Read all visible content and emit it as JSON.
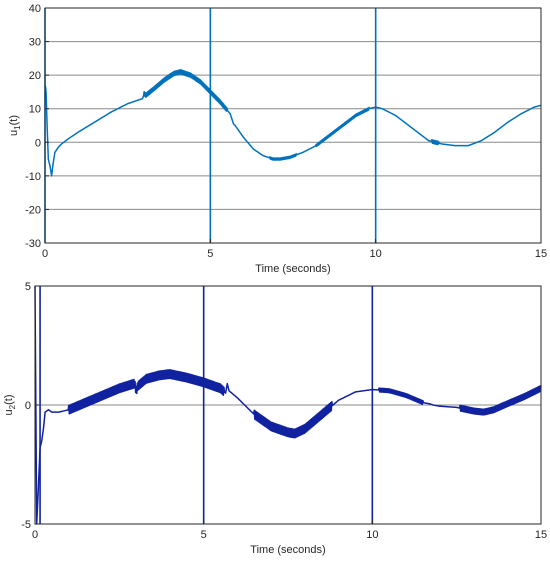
{
  "chart_data": [
    {
      "type": "line",
      "xlabel": "Time (seconds)",
      "ylabel_main": "u",
      "ylabel_sub": "1",
      "ylabel_tail": "(t)",
      "xlim": [
        0,
        15
      ],
      "ylim": [
        -30,
        40
      ],
      "xticks": [
        0,
        5,
        10,
        15
      ],
      "yticks": [
        -30,
        -20,
        -10,
        0,
        10,
        20,
        30,
        40
      ],
      "grid": "horizontal",
      "color": "#0072BD",
      "spikes": [
        0,
        5,
        10
      ],
      "noisy_spans": [
        [
          3.0,
          5.5,
          0.6
        ],
        [
          6.8,
          7.6,
          0.3
        ],
        [
          8.2,
          9.8,
          0.35
        ],
        [
          11.7,
          11.9,
          0.5
        ]
      ],
      "x": [
        0,
        0.03,
        0.06,
        0.1,
        0.15,
        0.2,
        0.25,
        0.3,
        0.4,
        0.5,
        0.7,
        1.0,
        1.5,
        2.0,
        2.5,
        2.95,
        3.0,
        3.05,
        3.3,
        3.6,
        3.9,
        4.1,
        4.4,
        4.7,
        5.0,
        5.3,
        5.6,
        5.7,
        5.75,
        6.0,
        6.3,
        6.6,
        6.9,
        7.1,
        7.4,
        7.8,
        8.2,
        8.6,
        9.0,
        9.4,
        9.8,
        10.0,
        10.2,
        10.6,
        11.0,
        11.4,
        11.6,
        11.8,
        12.0,
        12.4,
        12.8,
        13.2,
        13.6,
        14.0,
        14.4,
        14.8,
        15.0
      ],
      "values": [
        17,
        16,
        6,
        -5,
        -7,
        -10,
        -6,
        -3,
        -1.5,
        -0.5,
        1,
        3,
        6,
        9,
        11.5,
        13,
        14.5,
        14,
        16,
        18.5,
        20.5,
        21,
        20,
        18,
        15,
        12,
        8.5,
        5.5,
        5,
        1.5,
        -2,
        -4,
        -5,
        -5,
        -4.5,
        -3,
        -1,
        2,
        5,
        8,
        10,
        10.5,
        10,
        8,
        5,
        2,
        0.5,
        0,
        -0.5,
        -1,
        -1,
        0.5,
        3,
        6,
        8.5,
        10.5,
        11
      ]
    },
    {
      "type": "line",
      "xlabel": "Time (seconds)",
      "ylabel_main": "u",
      "ylabel_sub": "2",
      "ylabel_tail": "(t)",
      "xlim": [
        0,
        15
      ],
      "ylim": [
        -5,
        5
      ],
      "xticks": [
        0,
        5,
        10,
        15
      ],
      "yticks": [
        -5,
        0,
        5
      ],
      "grid": "horizontal",
      "color": "#1122A0",
      "spikes": [
        0.15,
        5,
        10
      ],
      "noisy_spans": [
        [
          1.0,
          5.6,
          0.18
        ],
        [
          6.5,
          8.8,
          0.18
        ],
        [
          10.2,
          11.5,
          0.08
        ],
        [
          12.6,
          15,
          0.12
        ]
      ],
      "x": [
        0,
        0.05,
        0.1,
        0.15,
        0.2,
        0.25,
        0.3,
        0.4,
        0.5,
        0.7,
        1.0,
        1.5,
        2.0,
        2.5,
        2.95,
        3.0,
        3.05,
        3.3,
        3.7,
        4.0,
        4.5,
        5.0,
        5.5,
        5.65,
        5.7,
        5.75,
        6.0,
        6.5,
        7.0,
        7.5,
        7.7,
        8.0,
        8.5,
        9.0,
        9.5,
        10.0,
        10.5,
        11.0,
        11.5,
        11.7,
        11.8,
        12.0,
        12.5,
        13.0,
        13.3,
        13.6,
        14.0,
        14.5,
        15.0
      ],
      "values": [
        5,
        -5,
        -3.5,
        -1.8,
        -1.5,
        -1,
        -0.3,
        -0.2,
        -0.3,
        -0.3,
        -0.2,
        0.1,
        0.4,
        0.7,
        0.9,
        0.6,
        0.8,
        1.1,
        1.25,
        1.3,
        1.15,
        0.95,
        0.7,
        0.5,
        0.9,
        0.6,
        0.3,
        -0.4,
        -0.9,
        -1.15,
        -1.2,
        -1.0,
        -0.4,
        0.2,
        0.55,
        0.65,
        0.6,
        0.4,
        0.1,
        0.05,
        0.0,
        -0.05,
        -0.1,
        -0.25,
        -0.3,
        -0.2,
        0.05,
        0.35,
        0.7
      ]
    }
  ]
}
